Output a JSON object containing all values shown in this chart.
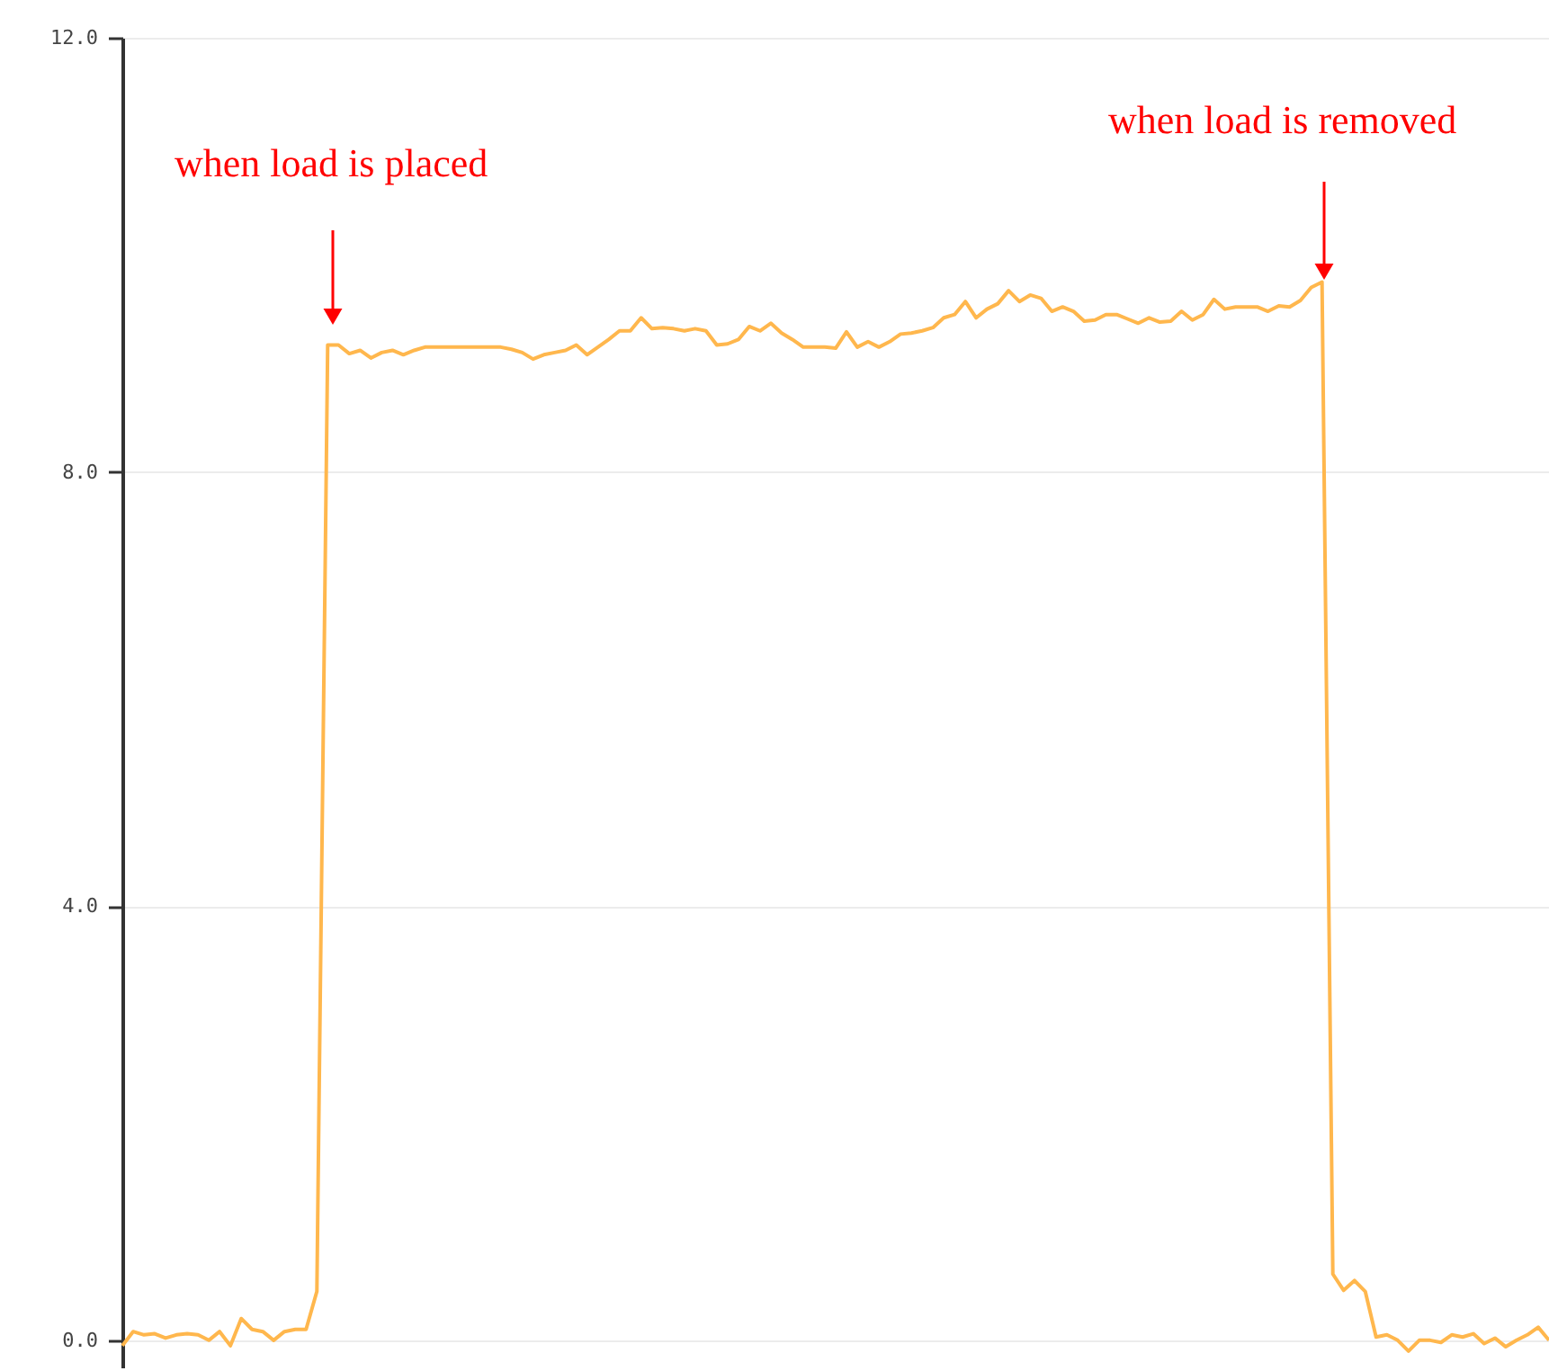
{
  "chart_data": {
    "type": "line",
    "categories": [
      null,
      null,
      null,
      null,
      null,
      null,
      null,
      null,
      null,
      null,
      null,
      null,
      null,
      null,
      null,
      null,
      null,
      null,
      null,
      null,
      null,
      null,
      null,
      null,
      null,
      null,
      null,
      null,
      null,
      null,
      null,
      null,
      null,
      null,
      null,
      null,
      null,
      null,
      null,
      null,
      null,
      null,
      null,
      null,
      null,
      null,
      null,
      null,
      null,
      null,
      null,
      null,
      null,
      null,
      null,
      null,
      null,
      null,
      null,
      null,
      null,
      null,
      null,
      null,
      null,
      null,
      null,
      null,
      null,
      null,
      null,
      null,
      null,
      null,
      null,
      null,
      null,
      null,
      null,
      null,
      null,
      null,
      null,
      null,
      null,
      null,
      null,
      null,
      null,
      null,
      null,
      null,
      null,
      null,
      null,
      null,
      null,
      null,
      null,
      null,
      null,
      null,
      null,
      null,
      null,
      null,
      null,
      null,
      null,
      null,
      null,
      null,
      null,
      null,
      null,
      null,
      null,
      null,
      null,
      null,
      null,
      null,
      null,
      null,
      null,
      null,
      null,
      null,
      null,
      null,
      null,
      null,
      null
    ],
    "series": [
      {
        "color": "#ffb74d",
        "values": [
          -0.05,
          0.08,
          0.05,
          0.06,
          0.02,
          0.05,
          0.06,
          0.05,
          0.0,
          0.08,
          -0.05,
          0.2,
          0.1,
          0.08,
          0.0,
          0.08,
          0.1,
          0.1,
          0.45,
          9.17,
          9.17,
          9.09,
          9.12,
          9.05,
          9.1,
          9.12,
          9.08,
          9.12,
          9.15,
          9.15,
          9.15,
          9.15,
          9.15,
          9.15,
          9.15,
          9.15,
          9.13,
          9.1,
          9.04,
          9.08,
          9.1,
          9.12,
          9.17,
          9.08,
          9.15,
          9.22,
          9.3,
          9.3,
          9.42,
          9.32,
          9.33,
          9.32,
          9.3,
          9.32,
          9.3,
          9.17,
          9.18,
          9.22,
          9.34,
          9.3,
          9.37,
          9.28,
          9.22,
          9.15,
          9.15,
          9.15,
          9.14,
          9.29,
          9.15,
          9.2,
          9.15,
          9.2,
          9.27,
          9.28,
          9.3,
          9.33,
          9.42,
          9.45,
          9.57,
          9.42,
          9.5,
          9.55,
          9.67,
          9.57,
          9.63,
          9.6,
          9.48,
          9.52,
          9.48,
          9.39,
          9.4,
          9.45,
          9.45,
          9.41,
          9.37,
          9.42,
          9.38,
          9.39,
          9.48,
          9.4,
          9.45,
          9.59,
          9.5,
          9.52,
          9.52,
          9.52,
          9.48,
          9.53,
          9.52,
          9.58,
          9.7,
          9.75,
          0.61,
          0.46,
          0.55,
          0.45,
          0.03,
          0.05,
          0.0,
          -0.1,
          0.0,
          0.0,
          -0.02,
          0.05,
          0.03,
          0.06,
          -0.03,
          0.02,
          -0.06,
          0.0,
          0.05,
          0.12,
          0.0
        ]
      }
    ],
    "ylim": [
      -0.25,
      12
    ],
    "yticks": [
      {
        "value": 0,
        "label": "0.0"
      },
      {
        "value": 4,
        "label": "4.0"
      },
      {
        "value": 8,
        "label": "8.0"
      },
      {
        "value": 12,
        "label": "12.0"
      }
    ],
    "grid": "y",
    "annotations": [
      "when load is placed",
      "when load is removed"
    ],
    "marker": "none",
    "line_style": "solid"
  }
}
